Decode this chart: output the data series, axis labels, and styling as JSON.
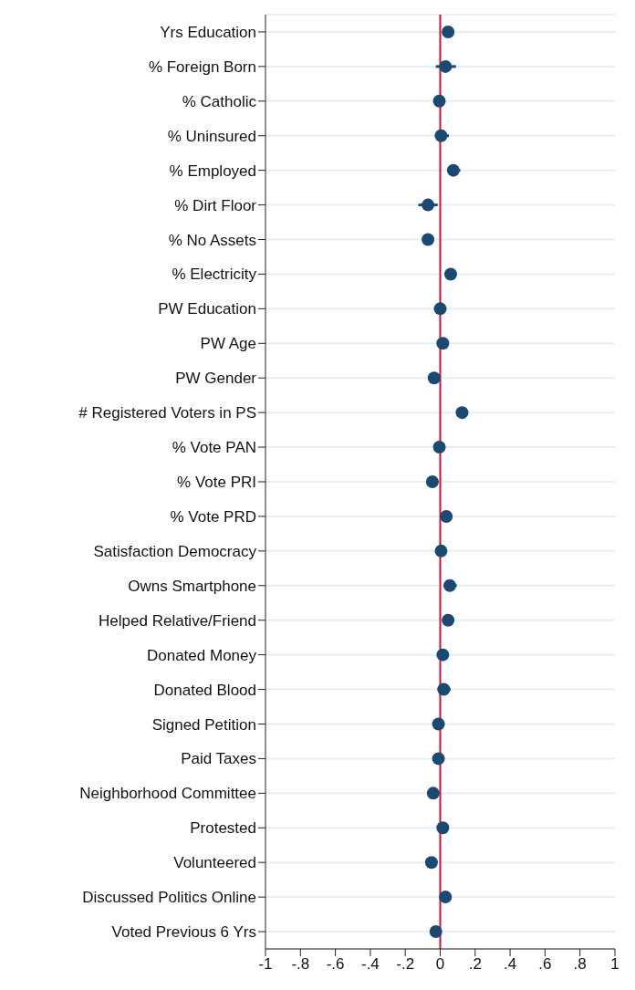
{
  "chart_data": {
    "type": "scatter",
    "orientation": "horizontal",
    "categories": [
      "Yrs Education",
      "% Foreign Born",
      "% Catholic",
      "% Uninsured",
      "% Employed",
      "% Dirt Floor",
      "% No Assets",
      "% Electricity",
      "PW Education",
      "PW Age",
      "PW Gender",
      "# Registered Voters in PS",
      "% Vote PAN",
      "% Vote PRI",
      "% Vote PRD",
      "Satisfaction Democracy",
      "Owns Smartphone",
      "Helped Relative/Friend",
      "Donated Money",
      "Donated Blood",
      "Signed Petition",
      "Paid Taxes",
      "Neighborhood Committee",
      "Protested",
      "Volunteered",
      "Discussed Politics Online",
      "Voted Previous 6 Yrs"
    ],
    "values": [
      0.045,
      0.03,
      -0.005,
      0.005,
      0.075,
      -0.07,
      -0.07,
      0.06,
      0,
      0.015,
      -0.035,
      0.125,
      -0.005,
      -0.045,
      0.035,
      0.005,
      0.055,
      0.045,
      0.015,
      0.02,
      -0.01,
      -0.01,
      -0.04,
      0.015,
      -0.05,
      0.03,
      -0.025
    ],
    "errors": [
      [
        0.02,
        0.08
      ],
      [
        -0.025,
        0.09
      ],
      null,
      [
        -0.03,
        0.05
      ],
      [
        0.05,
        0.115
      ],
      [
        -0.125,
        -0.015
      ],
      null,
      null,
      null,
      null,
      null,
      null,
      null,
      [
        -0.08,
        -0.01
      ],
      null,
      null,
      [
        0.02,
        0.095
      ],
      null,
      [
        -0.01,
        0.04
      ],
      [
        -0.015,
        0.06
      ],
      null,
      null,
      null,
      null,
      null,
      null,
      null
    ],
    "color": "#1a4a72",
    "marker": "circle",
    "xlim": [
      -1,
      1
    ],
    "xticks": [
      -1,
      {
        "value": -0.8,
        "label": "-.8"
      },
      {
        "value": -0.6,
        "label": "-.6"
      },
      {
        "value": -0.4,
        "label": "-.4"
      },
      {
        "value": -0.2,
        "label": "-.2"
      },
      0,
      {
        "value": 0.2,
        "label": ".2"
      },
      {
        "value": 0.4,
        "label": ".4"
      },
      {
        "value": 0.6,
        "label": ".6"
      },
      {
        "value": 0.8,
        "label": ".8"
      },
      1
    ],
    "ref_lines": [
      {
        "axis": "x",
        "value": 0,
        "color": "#d0103a"
      }
    ],
    "grid": "y"
  }
}
